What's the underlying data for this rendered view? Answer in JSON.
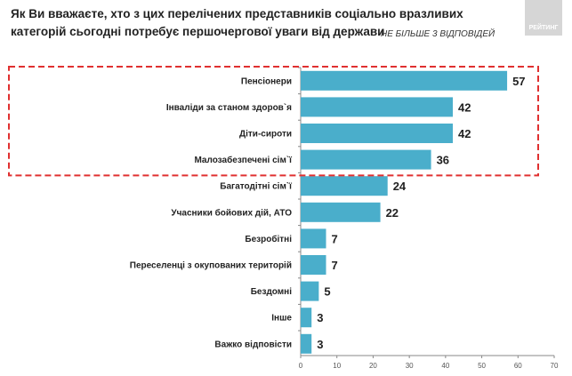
{
  "chart_data": {
    "type": "bar",
    "orientation": "horizontal",
    "title": "Як Ви вважаєте, хто з цих перелічених представників соціально вразливих категорій сьогодні потребує першочергової уваги від держави",
    "subtitle": "НЕ БІЛЬШЕ 3 ВІДПОВІДЕЙ",
    "categories": [
      "Пенсіонери",
      "Інваліди за станом здоров`я",
      "Діти-сироти",
      "Малозабезпечені сім`ї",
      "Багатодітні сім`ї",
      "Учасники бойових дій, АТО",
      "Безробітні",
      "Переселенці з окупованих територій",
      "Бездомні",
      "Інше",
      "Важко відповісти"
    ],
    "values": [
      57,
      42,
      42,
      36,
      24,
      22,
      7,
      7,
      5,
      3,
      3
    ],
    "xlim": [
      0,
      70
    ],
    "xticks": [
      0,
      10,
      20,
      30,
      40,
      50,
      60,
      70
    ],
    "grid": false,
    "bar_color": "#4aaecb",
    "highlight": {
      "categories_count": 4,
      "style": "dashed-box",
      "color": "#e03030"
    }
  },
  "logo": {
    "text": "РЕЙТИНГ"
  }
}
